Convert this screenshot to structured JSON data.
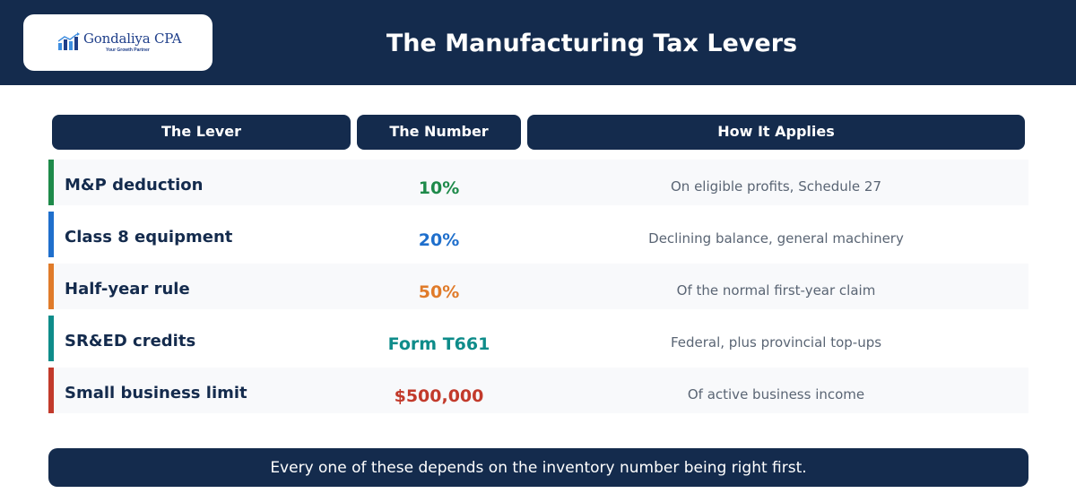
{
  "header": {
    "logo": {
      "name": "Gondaliya CPA",
      "tagline": "Your Growth Partner",
      "icon": "bar-chart-logo-icon",
      "colors": [
        "#1f3f8a",
        "#3d8de0"
      ]
    },
    "title": "The Manufacturing Tax Levers"
  },
  "table": {
    "columns": [
      "The Lever",
      "The Number",
      "How It Applies"
    ],
    "rows": [
      {
        "lever": "M&P deduction",
        "number": "10%",
        "applies": "On eligible profits, Schedule 27",
        "color": "#1e8a4a"
      },
      {
        "lever": "Class 8 equipment",
        "number": "20%",
        "applies": "Declining balance, general machinery",
        "color": "#1f6fcc"
      },
      {
        "lever": "Half-year rule",
        "number": "50%",
        "applies": "Of the normal first-year claim",
        "color": "#e07b2a"
      },
      {
        "lever": "SR&ED credits",
        "number": "Form T661",
        "applies": "Federal, plus provincial top-ups",
        "color": "#0e8c8a"
      },
      {
        "lever": "Small business limit",
        "number": "$500,000",
        "applies": "Of active business income",
        "color": "#c23a2b"
      }
    ]
  },
  "footer": {
    "text": "Every one of these depends on the inventory number being right first."
  },
  "colors": {
    "navy": "#142b4d",
    "row_shade": "#f8f9fb"
  }
}
